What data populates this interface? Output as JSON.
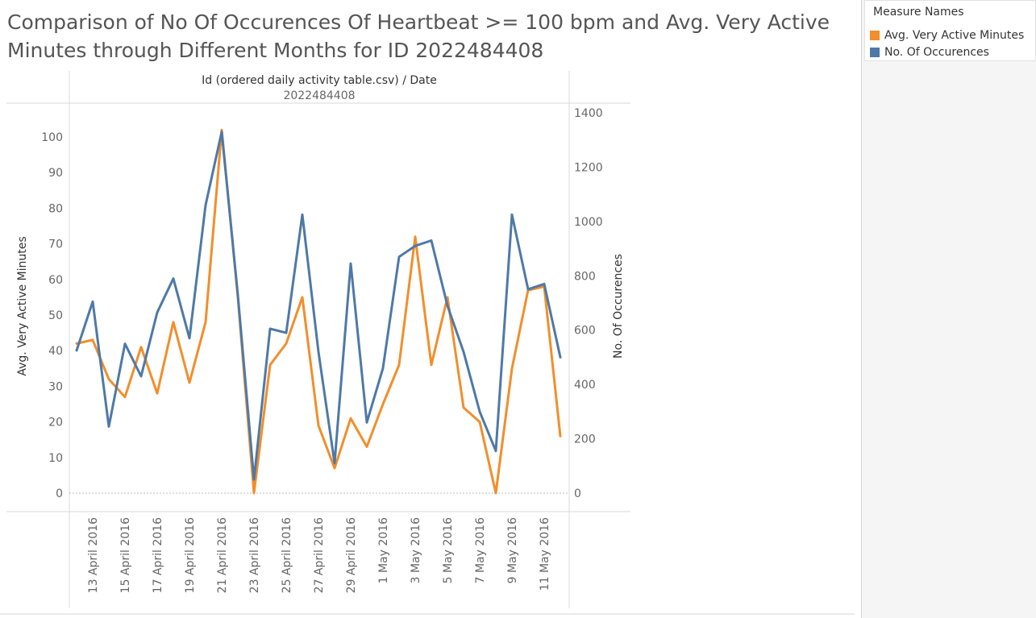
{
  "title": "Comparison of No Of Occurences Of Heartbeat >= 100 bpm and Avg. Very Active Minutes through Different Months for ID 2022484408",
  "legend": {
    "title": "Measure Names",
    "items": [
      {
        "label": "Avg. Very Active Minutes",
        "color": "#f28e2b"
      },
      {
        "label": "No. Of Occurences",
        "color": "#4e79a7"
      }
    ]
  },
  "chart_data": {
    "type": "line",
    "header": "Id (ordered daily activity table.csv)  /  Date",
    "header_value": "2022484408",
    "x": [
      "12 April 2016",
      "13 April 2016",
      "14 April 2016",
      "15 April 2016",
      "16 April 2016",
      "17 April 2016",
      "18 April 2016",
      "19 April 2016",
      "20 April 2016",
      "21 April 2016",
      "22 April 2016",
      "23 April 2016",
      "24 April 2016",
      "25 April 2016",
      "26 April 2016",
      "27 April 2016",
      "28 April 2016",
      "29 April 2016",
      "30 April 2016",
      "1 May 2016",
      "2 May 2016",
      "3 May 2016",
      "4 May 2016",
      "5 May 2016",
      "6 May 2016",
      "7 May 2016",
      "8 May 2016",
      "9 May 2016",
      "10 May 2016",
      "11 May 2016",
      "12 May 2016"
    ],
    "x_tick_labels": [
      "13 April 2016",
      "15 April 2016",
      "17 April 2016",
      "19 April 2016",
      "21 April 2016",
      "23 April 2016",
      "25 April 2016",
      "27 April 2016",
      "29 April 2016",
      "1 May 2016",
      "3 May 2016",
      "5 May 2016",
      "7 May 2016",
      "9 May 2016",
      "11 May 2016"
    ],
    "series": [
      {
        "name": "Avg. Very Active Minutes",
        "axis": "left",
        "color": "#f28e2b",
        "values": [
          42,
          43,
          32,
          27,
          41,
          28,
          48,
          31,
          48,
          102,
          55,
          0,
          36,
          42,
          55,
          19,
          7,
          21,
          13,
          25,
          36,
          72,
          36,
          55,
          24,
          20,
          0,
          35,
          57,
          58,
          16
        ]
      },
      {
        "name": "No. Of Occurences",
        "axis": "right",
        "color": "#4e79a7",
        "values": [
          525,
          705,
          245,
          550,
          430,
          665,
          790,
          570,
          1060,
          1330,
          730,
          50,
          605,
          590,
          1025,
          520,
          110,
          845,
          260,
          460,
          870,
          910,
          930,
          690,
          520,
          300,
          155,
          1025,
          750,
          770,
          500
        ]
      }
    ],
    "ylabel": "Avg. Very Active Minutes",
    "ylim": [
      0,
      104
    ],
    "y_ticks": [
      0,
      10,
      20,
      30,
      40,
      50,
      60,
      70,
      80,
      90,
      100
    ],
    "y2label": "No. Of Occurences",
    "y2lim": [
      0,
      1400
    ],
    "y2_ticks": [
      0,
      200,
      400,
      600,
      800,
      1000,
      1200,
      1400
    ]
  }
}
